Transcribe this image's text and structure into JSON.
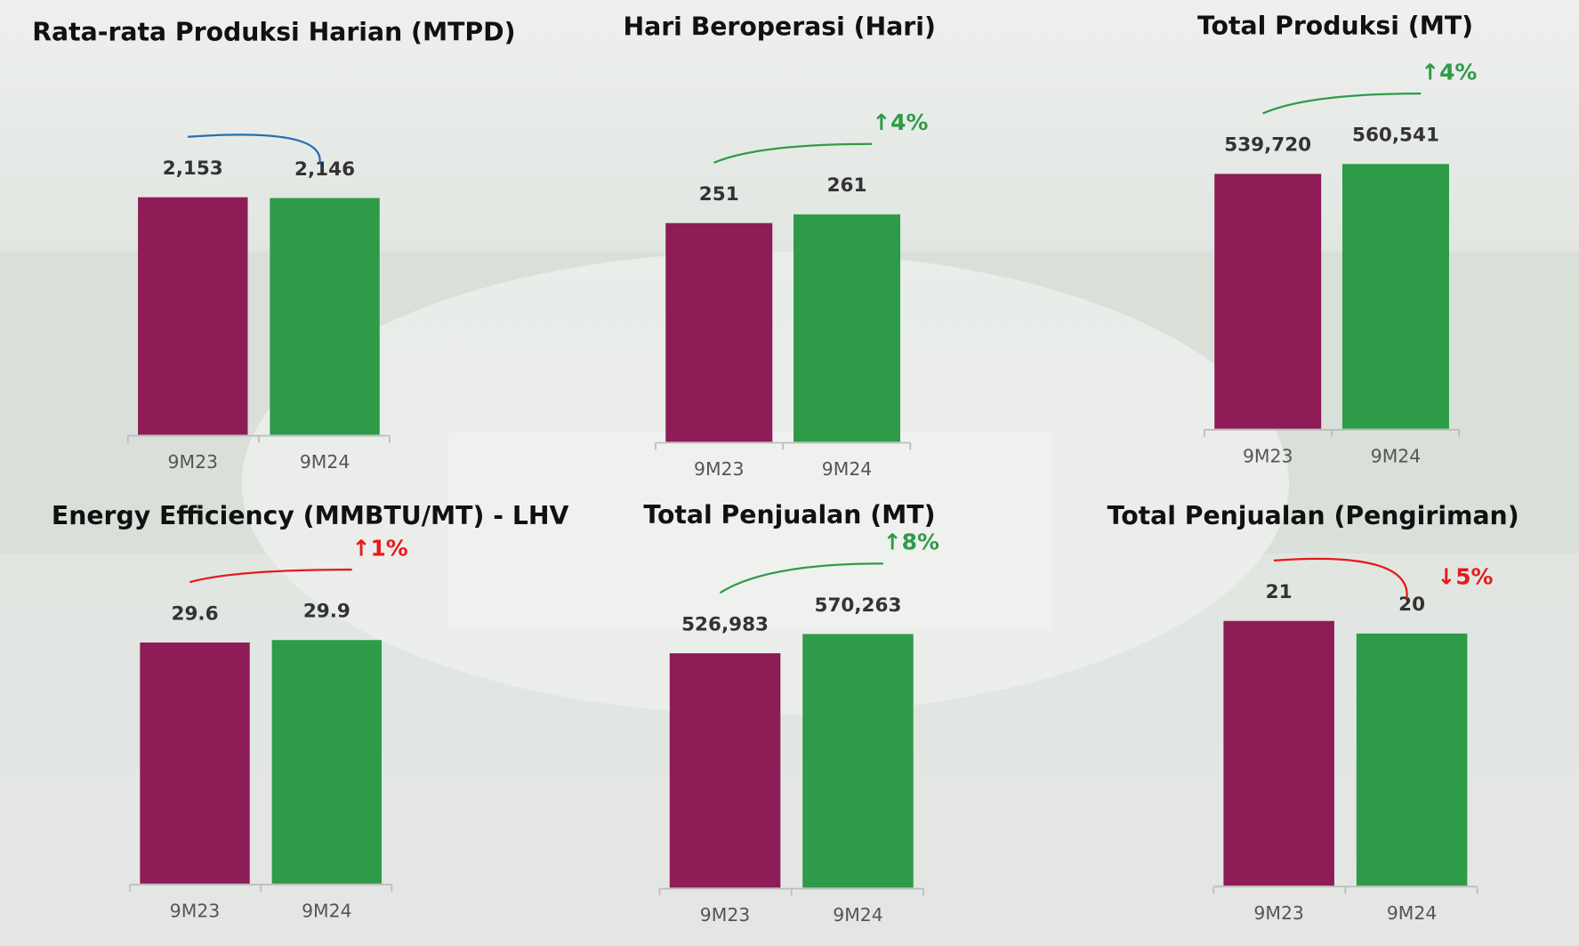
{
  "chart_data": [
    {
      "type": "bar",
      "title": "Rata-rata Produksi Harian (MTPD)",
      "categories": [
        "9M23",
        "9M24"
      ],
      "values": [
        2153,
        2146
      ],
      "value_labels": [
        "2,153",
        "2,146"
      ],
      "colors": [
        "#8e1c56",
        "#2e9b48"
      ],
      "annotation_color": "#2171b5"
    },
    {
      "type": "bar",
      "title": "Hari Beroperasi (Hari)",
      "categories": [
        "9M23",
        "9M24"
      ],
      "values": [
        251,
        261
      ],
      "colors": [
        "#8e1c56",
        "#2e9b48"
      ],
      "annotation": "↑4%",
      "annotation_color": "#2e9b48"
    },
    {
      "type": "bar",
      "title": "Total Produksi (MT)",
      "categories": [
        "9M23",
        "9M24"
      ],
      "values": [
        539720,
        560541
      ],
      "value_labels": [
        "539,720",
        "560,541"
      ],
      "colors": [
        "#8e1c56",
        "#2e9b48"
      ],
      "annotation": "↑4%",
      "annotation_color": "#2e9b48"
    },
    {
      "type": "bar",
      "title": "Energy Efficiency (MMBTU/MT) - LHV",
      "categories": [
        "9M23",
        "9M24"
      ],
      "values": [
        29.6,
        29.9
      ],
      "colors": [
        "#8e1c56",
        "#2e9b48"
      ],
      "annotation": "↑1%",
      "annotation_color": "#e8191b"
    },
    {
      "type": "bar",
      "title": "Total Penjualan (MT)",
      "categories": [
        "9M23",
        "9M24"
      ],
      "values": [
        526983,
        570263
      ],
      "value_labels": [
        "526,983",
        "570,263"
      ],
      "colors": [
        "#8e1c56",
        "#2e9b48"
      ],
      "annotation": "↑8%",
      "annotation_color": "#2e9b48"
    },
    {
      "type": "bar",
      "title": "Total Penjualan (Pengiriman)",
      "categories": [
        "9M23",
        "9M24"
      ],
      "values": [
        21,
        20
      ],
      "colors": [
        "#8e1c56",
        "#2e9b48"
      ],
      "annotation": "↓5%",
      "annotation_color": "#e8191b"
    }
  ]
}
